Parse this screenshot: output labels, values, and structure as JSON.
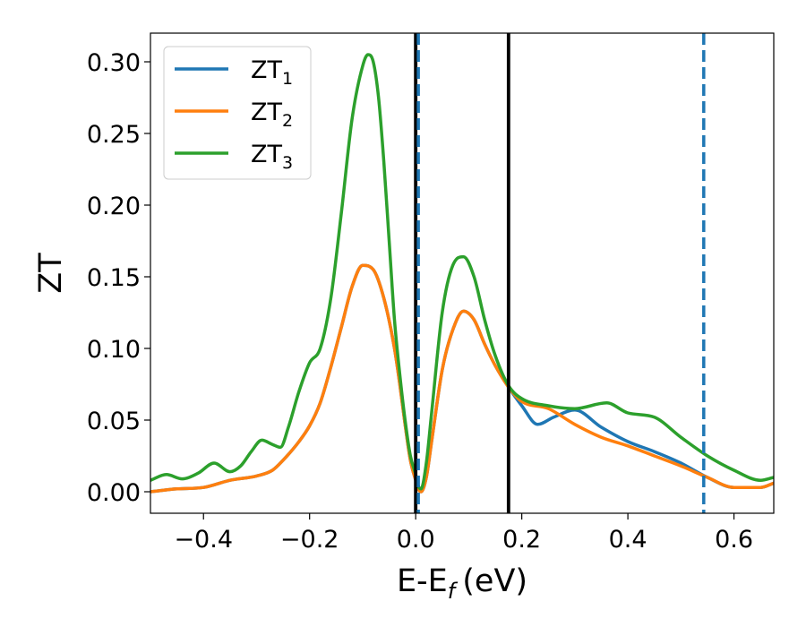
{
  "chart_data": {
    "type": "line",
    "xlabel": "E-E",
    "xlabel_sub": "f",
    "xlabel_unit": "(eV)",
    "ylabel": "ZT",
    "xlim": [
      -0.5,
      0.675
    ],
    "ylim": [
      -0.015,
      0.32
    ],
    "xticks": [
      -0.4,
      -0.2,
      0.0,
      0.2,
      0.4,
      0.6
    ],
    "xtick_labels": [
      "−0.4",
      "−0.2",
      "0.0",
      "0.2",
      "0.4",
      "0.6"
    ],
    "yticks": [
      0.0,
      0.05,
      0.1,
      0.15,
      0.2,
      0.25,
      0.3
    ],
    "ytick_labels": [
      "0.00",
      "0.05",
      "0.10",
      "0.15",
      "0.20",
      "0.25",
      "0.30"
    ],
    "grid": false,
    "legend_position": "top-left",
    "vlines": [
      {
        "x": 0.0,
        "style": "solid",
        "color": "#000000"
      },
      {
        "x": 0.005,
        "style": "dashed",
        "color": "#1f77b4"
      },
      {
        "x": 0.175,
        "style": "solid",
        "color": "#000000"
      },
      {
        "x": 0.543,
        "style": "dashed",
        "color": "#1f77b4"
      }
    ],
    "series": [
      {
        "name": "ZT",
        "name_sub": "1",
        "color": "#1f77b4",
        "x": [
          -0.5,
          -0.45,
          -0.4,
          -0.35,
          -0.3,
          -0.27,
          -0.25,
          -0.22,
          -0.2,
          -0.18,
          -0.16,
          -0.14,
          -0.12,
          -0.1,
          -0.08,
          -0.06,
          -0.04,
          -0.03,
          -0.02,
          -0.01,
          0.0,
          0.005,
          0.01,
          0.02,
          0.03,
          0.05,
          0.07,
          0.09,
          0.11,
          0.13,
          0.15,
          0.175,
          0.2,
          0.23,
          0.26,
          0.3,
          0.35,
          0.4,
          0.45,
          0.5,
          0.55,
          0.6,
          0.65,
          0.675
        ],
        "y": [
          0.0,
          0.002,
          0.003,
          0.008,
          0.011,
          0.015,
          0.022,
          0.035,
          0.046,
          0.062,
          0.087,
          0.115,
          0.143,
          0.158,
          0.155,
          0.135,
          0.1,
          0.075,
          0.047,
          0.022,
          0.008,
          0.002,
          0.0,
          0.01,
          0.035,
          0.085,
          0.113,
          0.126,
          0.12,
          0.103,
          0.088,
          0.073,
          0.06,
          0.047,
          0.052,
          0.057,
          0.045,
          0.035,
          0.028,
          0.02,
          0.01,
          0.003,
          0.003,
          0.006
        ]
      },
      {
        "name": "ZT",
        "name_sub": "2",
        "color": "#ff7f0e",
        "x": [
          -0.5,
          -0.45,
          -0.4,
          -0.35,
          -0.3,
          -0.27,
          -0.25,
          -0.22,
          -0.2,
          -0.18,
          -0.16,
          -0.14,
          -0.12,
          -0.1,
          -0.08,
          -0.06,
          -0.04,
          -0.03,
          -0.02,
          -0.01,
          0.0,
          0.005,
          0.01,
          0.02,
          0.03,
          0.05,
          0.07,
          0.09,
          0.11,
          0.13,
          0.15,
          0.175,
          0.2,
          0.25,
          0.3,
          0.35,
          0.4,
          0.45,
          0.5,
          0.55,
          0.6,
          0.65,
          0.675
        ],
        "y": [
          0.0,
          0.002,
          0.003,
          0.008,
          0.011,
          0.015,
          0.022,
          0.035,
          0.046,
          0.062,
          0.087,
          0.115,
          0.143,
          0.158,
          0.155,
          0.135,
          0.1,
          0.075,
          0.047,
          0.022,
          0.008,
          0.002,
          0.0,
          0.01,
          0.035,
          0.085,
          0.113,
          0.126,
          0.12,
          0.103,
          0.088,
          0.073,
          0.063,
          0.058,
          0.047,
          0.038,
          0.032,
          0.025,
          0.018,
          0.01,
          0.003,
          0.003,
          0.006
        ]
      },
      {
        "name": "ZT",
        "name_sub": "3",
        "color": "#2ca02c",
        "x": [
          -0.5,
          -0.47,
          -0.44,
          -0.41,
          -0.38,
          -0.35,
          -0.33,
          -0.31,
          -0.29,
          -0.27,
          -0.255,
          -0.24,
          -0.22,
          -0.2,
          -0.18,
          -0.16,
          -0.14,
          -0.12,
          -0.1,
          -0.09,
          -0.08,
          -0.07,
          -0.06,
          -0.05,
          -0.04,
          -0.03,
          -0.02,
          -0.01,
          0.0,
          0.005,
          0.01,
          0.02,
          0.03,
          0.05,
          0.07,
          0.09,
          0.11,
          0.13,
          0.15,
          0.175,
          0.2,
          0.25,
          0.3,
          0.36,
          0.4,
          0.45,
          0.5,
          0.55,
          0.6,
          0.65,
          0.675
        ],
        "y": [
          0.008,
          0.012,
          0.009,
          0.013,
          0.02,
          0.014,
          0.018,
          0.028,
          0.036,
          0.033,
          0.031,
          0.045,
          0.07,
          0.09,
          0.1,
          0.135,
          0.195,
          0.26,
          0.297,
          0.305,
          0.3,
          0.275,
          0.23,
          0.175,
          0.12,
          0.082,
          0.05,
          0.025,
          0.012,
          0.004,
          0.002,
          0.02,
          0.055,
          0.125,
          0.158,
          0.164,
          0.15,
          0.12,
          0.095,
          0.074,
          0.065,
          0.06,
          0.058,
          0.062,
          0.055,
          0.052,
          0.038,
          0.025,
          0.015,
          0.008,
          0.01
        ]
      }
    ]
  }
}
